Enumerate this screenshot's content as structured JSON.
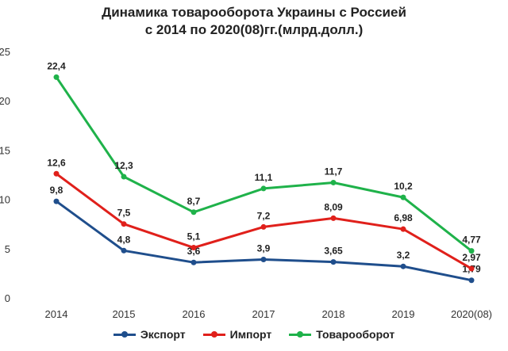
{
  "chart_data": {
    "type": "line",
    "title_line1": "Динамика товарооборота Украины с Россией",
    "title_line2": "с 2014 по 2020(08)гг.(млрд.долл.)",
    "categories": [
      "2014",
      "2015",
      "2016",
      "2017",
      "2018",
      "2019",
      "2020(08)"
    ],
    "yticks": [
      "0",
      "5",
      "10",
      "15",
      "20",
      "25"
    ],
    "ylim": [
      0,
      25
    ],
    "grid": false,
    "legend_position": "bottom",
    "series": [
      {
        "name": "Экспорт",
        "color": "#1f4e8c",
        "values": [
          9.8,
          4.8,
          3.6,
          3.9,
          3.65,
          3.2,
          1.79
        ],
        "labels": [
          "9,8",
          "4,8",
          "3,6",
          "3,9",
          "3,65",
          "3,2",
          "1,79"
        ]
      },
      {
        "name": "Импорт",
        "color": "#e0201b",
        "values": [
          12.6,
          7.5,
          5.1,
          7.2,
          8.09,
          6.98,
          2.97
        ],
        "labels": [
          "12,6",
          "7,5",
          "5,1",
          "7,2",
          "8,09",
          "6,98",
          "2,97"
        ]
      },
      {
        "name": "Товарооборот",
        "color": "#1fb24a",
        "values": [
          22.4,
          12.3,
          8.7,
          11.1,
          11.7,
          10.2,
          4.77
        ],
        "labels": [
          "22,4",
          "12,3",
          "8,7",
          "11,1",
          "11,7",
          "10,2",
          "4,77"
        ]
      }
    ]
  }
}
